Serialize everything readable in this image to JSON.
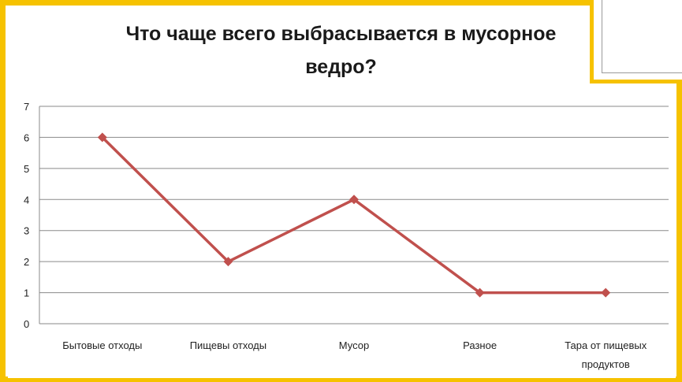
{
  "chart_data": {
    "type": "line",
    "title_line1": "Что чаще всего выбрасывается в мусорное",
    "title_line2": "ведро?",
    "categories": [
      [
        "Бытовые отходы"
      ],
      [
        "Пищевы отходы"
      ],
      [
        "Мусор"
      ],
      [
        "Разное"
      ],
      [
        "Тара от пищевых",
        "продуктов"
      ]
    ],
    "values": [
      6,
      2,
      4,
      1,
      1
    ],
    "ylim": [
      0,
      7
    ],
    "yticks": [
      "0",
      "1",
      "2",
      "3",
      "4",
      "5",
      "6",
      "7"
    ],
    "grid": true,
    "line_color": "#c0504d"
  }
}
